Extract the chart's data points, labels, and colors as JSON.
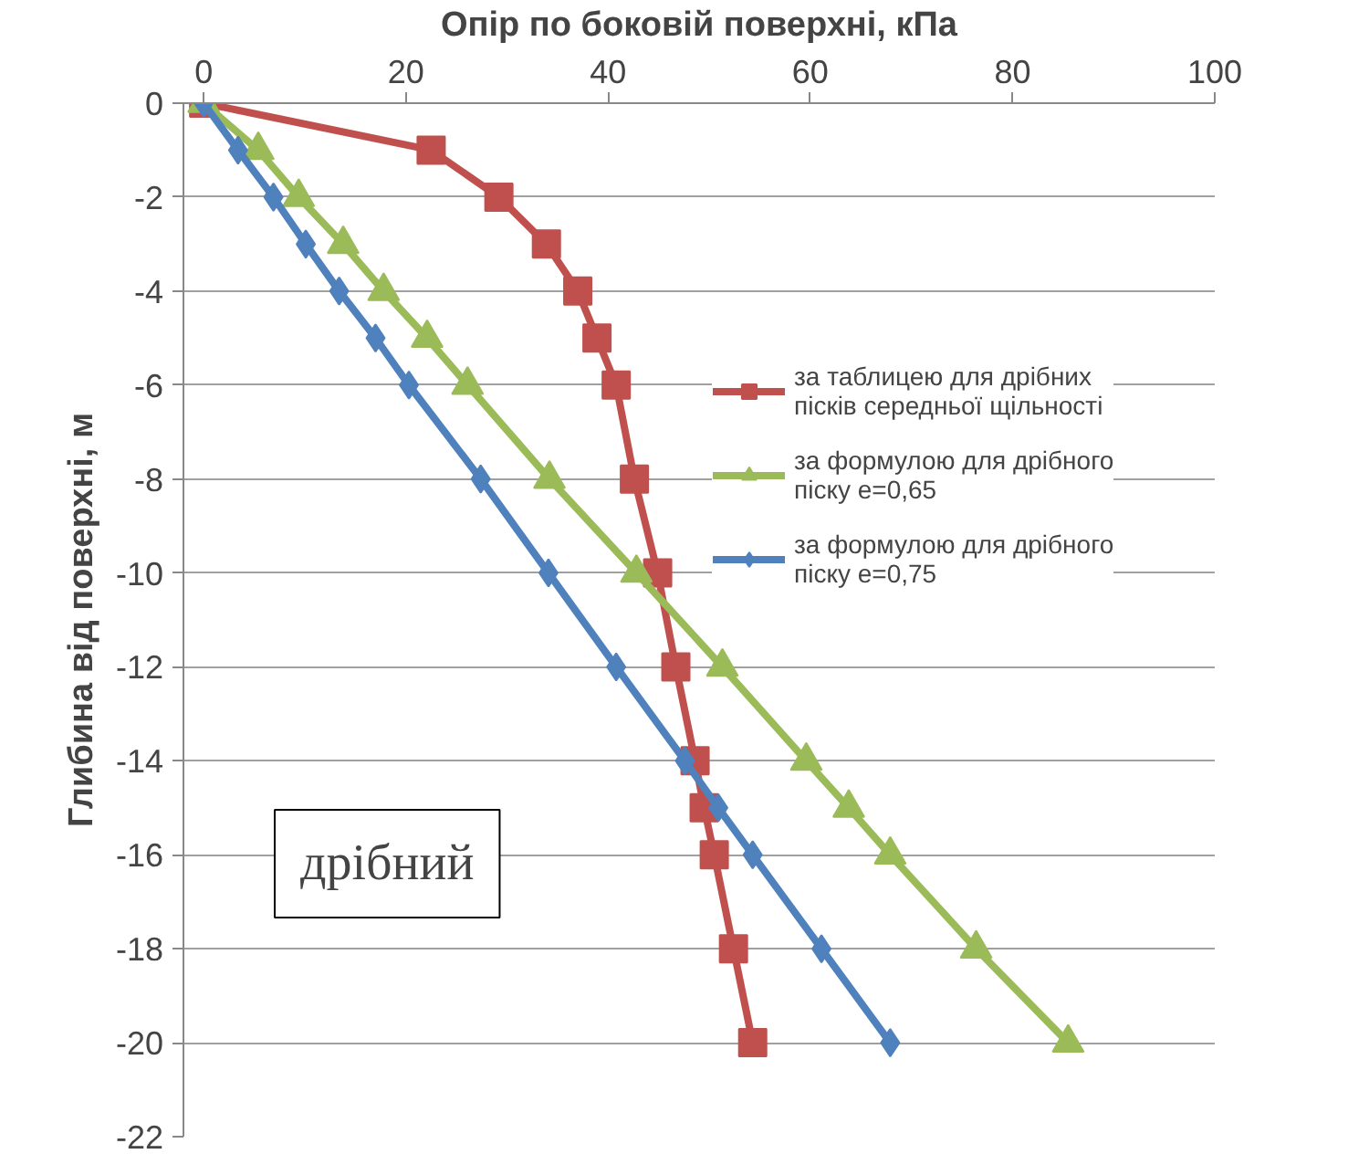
{
  "chart_data": {
    "type": "line",
    "xlabel": "Опір по боковій поверхні, кПа",
    "ylabel": "Глибина від поверхні, м",
    "xlim": [
      -2,
      100
    ],
    "xticks": [
      0,
      20,
      40,
      60,
      80,
      100
    ],
    "ylim": [
      -22,
      0
    ],
    "yticks": [
      0,
      -2,
      -4,
      -6,
      -8,
      -10,
      -12,
      -14,
      -16,
      -18,
      -20,
      -22
    ],
    "grid": "y",
    "legend": "right",
    "line_style": "solid",
    "annotations": [
      "дрібний"
    ],
    "series": [
      {
        "name": "за таблицею для дрібних пісків середньої щільності",
        "color": "#c0504d",
        "marker": "square",
        "x": [
          0,
          22.5,
          29.2,
          33.9,
          37.0,
          38.9,
          40.8,
          42.6,
          44.9,
          46.7,
          48.6,
          49.5,
          50.5,
          52.4,
          54.3
        ],
        "values": [
          0,
          -1,
          -2,
          -3,
          -4,
          -5,
          -6,
          -8,
          -10,
          -12,
          -14,
          -15,
          -16,
          -18,
          -20
        ]
      },
      {
        "name": "за формулою для дрібного піску е=0,65",
        "color": "#9bbb59",
        "marker": "triangle",
        "x": [
          0,
          5.4,
          9.4,
          13.8,
          17.8,
          22.1,
          26.1,
          34.2,
          42.8,
          51.3,
          59.6,
          63.8,
          67.9,
          76.4,
          85.5
        ],
        "values": [
          0,
          -1,
          -2,
          -3,
          -4,
          -5,
          -6,
          -8,
          -10,
          -12,
          -14,
          -15,
          -16,
          -18,
          -20
        ]
      },
      {
        "name": "за формулою для дрібного піску е=0,75",
        "color": "#4f81bd",
        "marker": "diamond",
        "x": [
          0,
          3.4,
          6.9,
          10.1,
          13.4,
          17.0,
          20.3,
          27.4,
          34.1,
          40.8,
          47.6,
          50.9,
          54.3,
          61.1,
          67.9
        ],
        "values": [
          0,
          -1,
          -2,
          -3,
          -4,
          -5,
          -6,
          -8,
          -10,
          -12,
          -14,
          -15,
          -16,
          -18,
          -20
        ]
      }
    ]
  }
}
